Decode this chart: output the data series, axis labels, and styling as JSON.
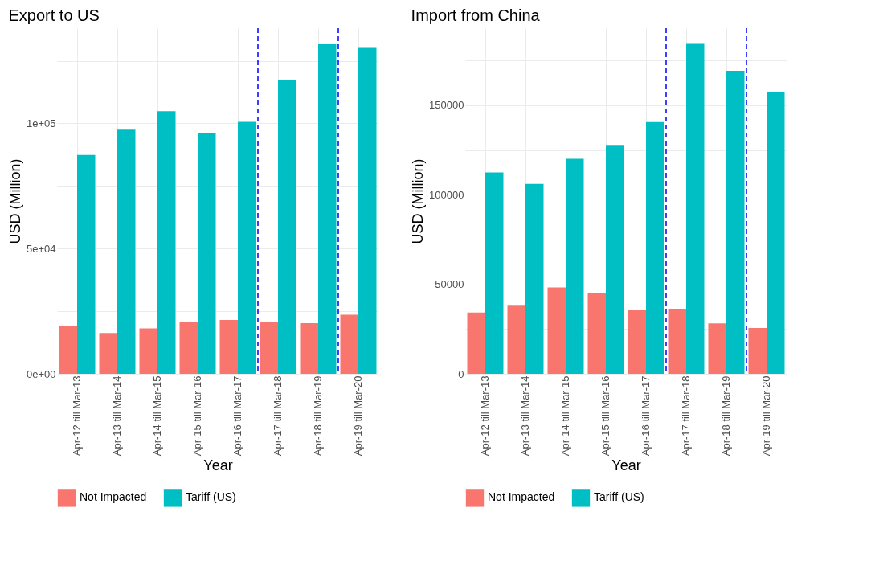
{
  "chart_data": [
    {
      "type": "bar",
      "title": "Export to US",
      "xlabel": "Year",
      "ylabel": "USD (Million)",
      "categories": [
        "Apr-12 till Mar-13",
        "Apr-13 till Mar-14",
        "Apr-14 till Mar-15",
        "Apr-15 till Mar-16",
        "Apr-16 till Mar-17",
        "Apr-17 till Mar-18",
        "Apr-18 till Mar-19",
        "Apr-19 till Mar-20"
      ],
      "series": [
        {
          "name": "Not Impacted",
          "color": "#f8766d",
          "values": [
            19000,
            16300,
            18100,
            20900,
            21500,
            20600,
            20200,
            23600
          ]
        },
        {
          "name": "Tariff (US)",
          "color": "#00bfc4",
          "values": [
            87400,
            97500,
            104900,
            96300,
            100600,
            117500,
            131600,
            130100
          ]
        }
      ],
      "ylim": [
        0,
        138000
      ],
      "yticks": [
        {
          "value": 0,
          "label": "0e+00"
        },
        {
          "value": 25000,
          "label": null
        },
        {
          "value": 50000,
          "label": "5e+04"
        },
        {
          "value": 75000,
          "label": null
        },
        {
          "value": 100000,
          "label": "1e+05"
        },
        {
          "value": 125000,
          "label": null
        }
      ],
      "grid": true,
      "legend": "bottom"
    },
    {
      "type": "bar",
      "title": "Import from China",
      "xlabel": "Year",
      "ylabel": "USD (Million)",
      "categories": [
        "Apr-12 till Mar-13",
        "Apr-13 till Mar-14",
        "Apr-14 till Mar-15",
        "Apr-15 till Mar-16",
        "Apr-16 till Mar-17",
        "Apr-17 till Mar-18",
        "Apr-18 till Mar-19",
        "Apr-19 till Mar-20"
      ],
      "series": [
        {
          "name": "Not Impacted",
          "color": "#f8766d",
          "values": [
            34200,
            38000,
            48300,
            44900,
            35500,
            36300,
            28200,
            25600
          ]
        },
        {
          "name": "Tariff (US)",
          "color": "#00bfc4",
          "values": [
            112400,
            106000,
            120100,
            127800,
            140600,
            184200,
            169200,
            157300
          ]
        }
      ],
      "ylim": [
        0,
        193000
      ],
      "yticks": [
        0,
        {
          "value": 25000,
          "label": null
        },
        50000,
        {
          "value": 75000,
          "label": null
        },
        100000,
        {
          "value": 125000,
          "label": null
        },
        150000,
        {
          "value": 175000,
          "label": null
        }
      ],
      "grid": true,
      "legend": "bottom"
    }
  ]
}
